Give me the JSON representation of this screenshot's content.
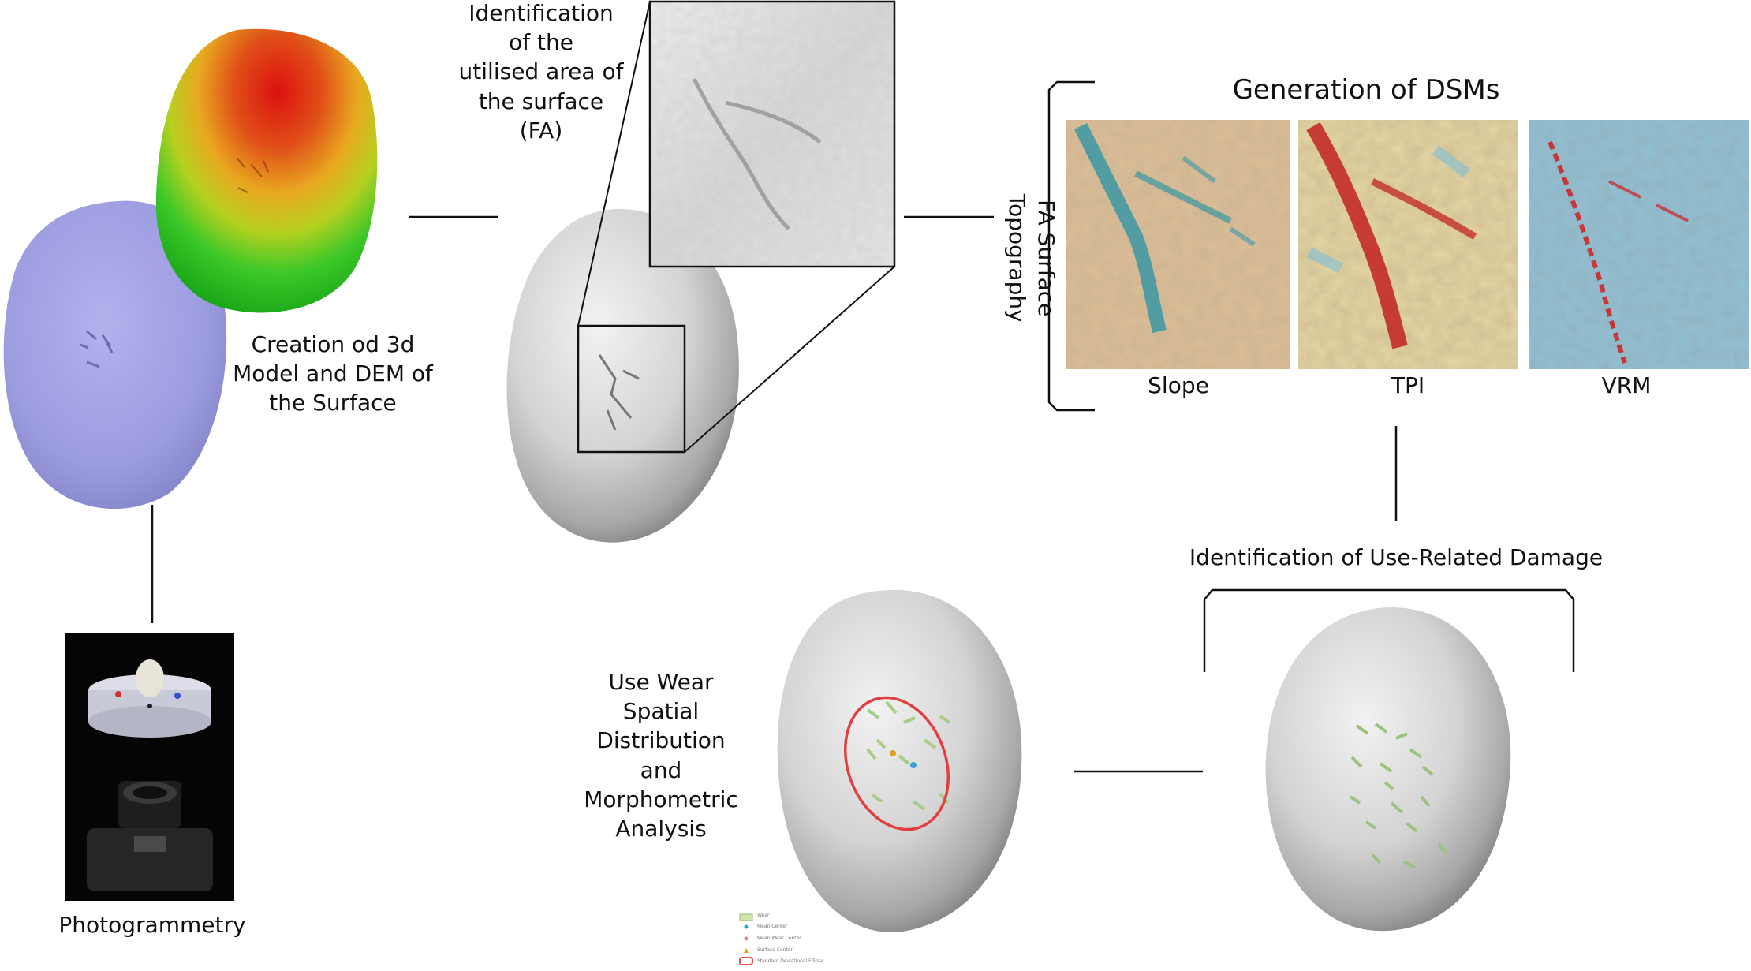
{
  "labels": {
    "model_creation": "Creation od 3d\nModel and DEM of\nthe Surface",
    "photogrammetry": "Photogrammetry",
    "identification_fa": "Identification\nof the\nutilised area of\nthe surface\n(FA)",
    "dsm_title": "Generation of DSMs",
    "fa_topography": "FA Surface Topography",
    "slope": "Slope",
    "tpi": "TPI",
    "vrm": "VRM",
    "use_related_damage": "Identification of Use-Related Damage",
    "use_wear_analysis": "Use Wear\nSpatial\nDistribution\nand\nMorphometric\nAnalysis"
  },
  "legend": {
    "items": [
      {
        "label": "Wear",
        "color": "#cfe8a8"
      },
      {
        "label": "Mean Center",
        "color": "#3aa0d0"
      },
      {
        "label": "Mean Wear Center",
        "color": "#e88080"
      },
      {
        "label": "Surface Center",
        "color": "#e0a020"
      },
      {
        "label": "Standard Deviational Ellipse",
        "color": "#e05050"
      }
    ]
  },
  "colors": {
    "lilac_model": "#9e9ee0",
    "dem_high": "#d81818",
    "dem_mid": "#e8c020",
    "dem_low": "#2cc020",
    "stone_grey": "#c8c8c8",
    "slope_base": "#dcc8a0",
    "slope_accent": "#1a8aa0",
    "tpi_base": "#e8d8a0",
    "tpi_accent": "#c01818",
    "vrm_base": "#8ec4dc",
    "vrm_accent": "#d02020",
    "ellipse": "#e04040",
    "wear_marks": "#b8d890"
  }
}
